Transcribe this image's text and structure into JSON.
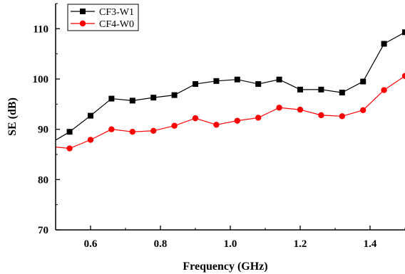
{
  "chart_data": {
    "type": "line",
    "xlabel": "Frequency (GHz)",
    "ylabel": "SE (dB)",
    "xlim": [
      0.5,
      1.5
    ],
    "ylim": [
      70,
      115
    ],
    "x_ticks": [
      0.6,
      0.8,
      1.0,
      1.2,
      1.4
    ],
    "x_tick_labels": [
      "0.6",
      "0.8",
      "1.0",
      "1.2",
      "1.4"
    ],
    "y_ticks": [
      70,
      80,
      90,
      100,
      110
    ],
    "y_tick_labels": [
      "70",
      "80",
      "90",
      "100",
      "110"
    ],
    "grid": false,
    "legend_position": "top-left",
    "x": [
      0.48,
      0.54,
      0.6,
      0.66,
      0.72,
      0.78,
      0.84,
      0.9,
      0.96,
      1.02,
      1.08,
      1.14,
      1.2,
      1.26,
      1.32,
      1.38,
      1.44,
      1.5
    ],
    "series": [
      {
        "name": "CF3-W1",
        "color": "#000000",
        "marker": "square",
        "values": [
          87.0,
          89.5,
          92.7,
          96.1,
          95.7,
          96.3,
          96.8,
          99.0,
          99.6,
          99.9,
          99.0,
          99.9,
          97.9,
          97.9,
          97.3,
          99.5,
          107.0,
          109.3
        ]
      },
      {
        "name": "CF4-W0",
        "color": "#ff0000",
        "marker": "circle",
        "values": [
          86.6,
          86.2,
          87.9,
          90.0,
          89.5,
          89.7,
          90.7,
          92.2,
          90.9,
          91.7,
          92.3,
          94.3,
          93.9,
          92.8,
          92.6,
          93.8,
          97.8,
          100.6
        ]
      }
    ]
  }
}
